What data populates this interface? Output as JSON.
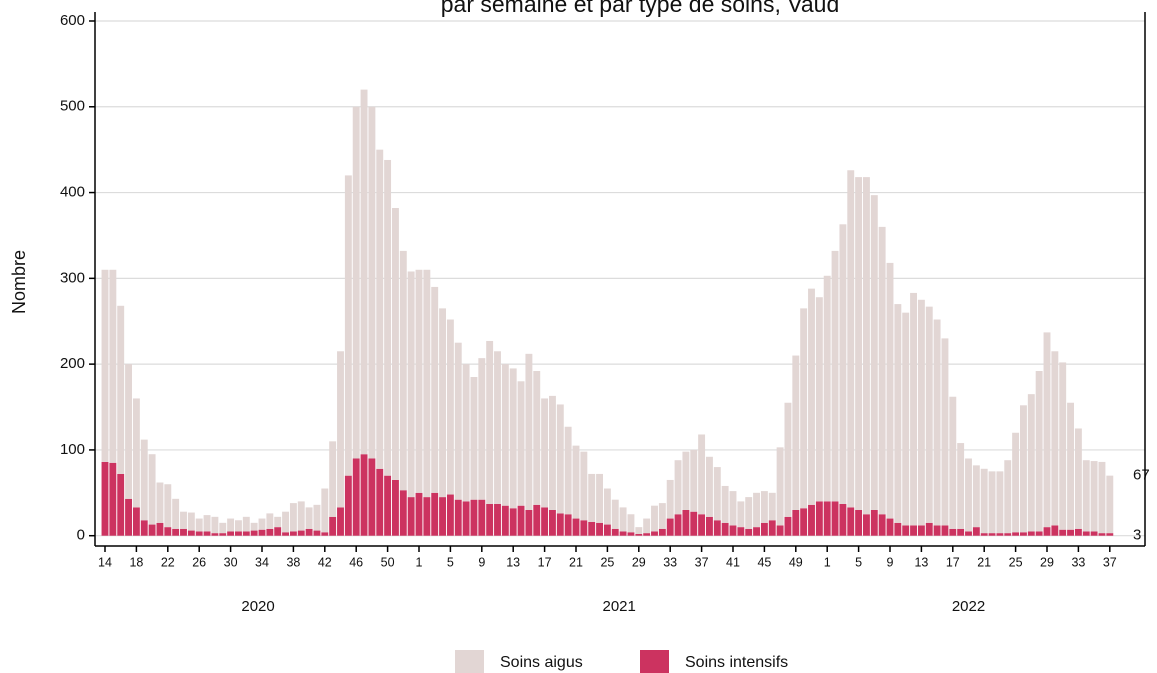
{
  "chart_data": {
    "type": "stacked-bar",
    "title": "par semaine et par type de soins, Vaud",
    "y_label": "Nombre",
    "categories": [
      "14",
      null,
      null,
      null,
      "18",
      null,
      null,
      null,
      "22",
      null,
      null,
      null,
      "26",
      null,
      null,
      null,
      "30",
      null,
      null,
      null,
      "34",
      null,
      null,
      null,
      "38",
      null,
      null,
      null,
      "42",
      null,
      null,
      null,
      "46",
      null,
      null,
      null,
      "50",
      null,
      null,
      null,
      "1",
      null,
      null,
      null,
      "5",
      null,
      null,
      null,
      "9",
      null,
      null,
      null,
      "13",
      null,
      null,
      null,
      "17",
      null,
      null,
      null,
      "21",
      null,
      null,
      null,
      "25",
      null,
      null,
      null,
      "29",
      null,
      null,
      null,
      "33",
      null,
      null,
      null,
      "37",
      null,
      null,
      null,
      "41",
      null,
      null,
      null,
      "45",
      null,
      null,
      null,
      "49",
      null,
      null,
      null,
      "1",
      null,
      null,
      null,
      "5",
      null,
      null,
      null,
      "9",
      null,
      null,
      null,
      "13",
      null,
      null,
      null,
      "17",
      null,
      null,
      null,
      "21",
      null,
      null,
      null,
      "25",
      null,
      null,
      null,
      "29",
      null,
      null,
      null,
      "33",
      null,
      null,
      null,
      "37"
    ],
    "groups": [
      {
        "label": "2020",
        "count": 40
      },
      {
        "label": "2021",
        "count": 52
      },
      {
        "label": "2022",
        "count": 37
      }
    ],
    "series": [
      {
        "name": "Soins intensifs",
        "color": "#cc3360",
        "values": [
          86,
          85,
          72,
          43,
          33,
          18,
          13,
          15,
          10,
          8,
          8,
          6,
          5,
          5,
          3,
          3,
          5,
          5,
          5,
          6,
          7,
          8,
          10,
          4,
          5,
          6,
          8,
          6,
          4,
          22,
          33,
          70,
          90,
          95,
          90,
          78,
          70,
          65,
          53,
          45,
          50,
          45,
          50,
          45,
          48,
          42,
          40,
          42,
          42,
          37,
          37,
          35,
          32,
          35,
          30,
          36,
          33,
          30,
          26,
          25,
          20,
          18,
          16,
          15,
          13,
          8,
          5,
          4,
          2,
          3,
          5,
          8,
          20,
          25,
          30,
          28,
          25,
          22,
          18,
          15,
          12,
          10,
          8,
          10,
          15,
          18,
          12,
          22,
          30,
          32,
          36,
          40,
          40,
          40,
          37,
          33,
          30,
          25,
          30,
          25,
          20,
          15,
          12,
          12,
          12,
          15,
          12,
          12,
          8,
          8,
          5,
          10,
          3,
          3,
          3,
          3,
          4,
          4,
          5,
          5,
          10,
          12,
          7,
          7,
          8,
          5,
          5,
          3,
          3
        ]
      },
      {
        "name": "Soins aigus",
        "color": "#e2d6d4",
        "values": [
          224,
          225,
          196,
          157,
          127,
          94,
          82,
          47,
          50,
          35,
          20,
          21,
          15,
          19,
          19,
          12,
          15,
          13,
          17,
          9,
          13,
          18,
          12,
          24,
          33,
          34,
          25,
          30,
          51,
          88,
          182,
          350,
          410,
          425,
          410,
          372,
          368,
          317,
          279,
          263,
          260,
          265,
          240,
          220,
          204,
          183,
          160,
          143,
          165,
          190,
          178,
          165,
          163,
          145,
          182,
          156,
          127,
          133,
          127,
          102,
          85,
          80,
          56,
          57,
          42,
          34,
          28,
          21,
          8,
          17,
          30,
          30,
          45,
          63,
          68,
          72,
          93,
          70,
          62,
          43,
          40,
          30,
          37,
          40,
          37,
          32,
          91,
          133,
          180,
          233,
          252,
          238,
          263,
          292,
          326,
          393,
          388,
          393,
          367,
          335,
          298,
          255,
          248,
          271,
          263,
          252,
          240,
          218,
          154,
          100,
          85,
          72,
          75,
          72,
          72,
          85,
          116,
          148,
          160,
          187,
          227,
          203,
          195,
          148,
          117,
          83,
          82,
          83,
          67
        ]
      }
    ],
    "ylim": [
      -12,
      605
    ],
    "yticks": [
      0,
      100,
      200,
      300,
      400,
      500,
      600
    ],
    "grid": true
  }
}
